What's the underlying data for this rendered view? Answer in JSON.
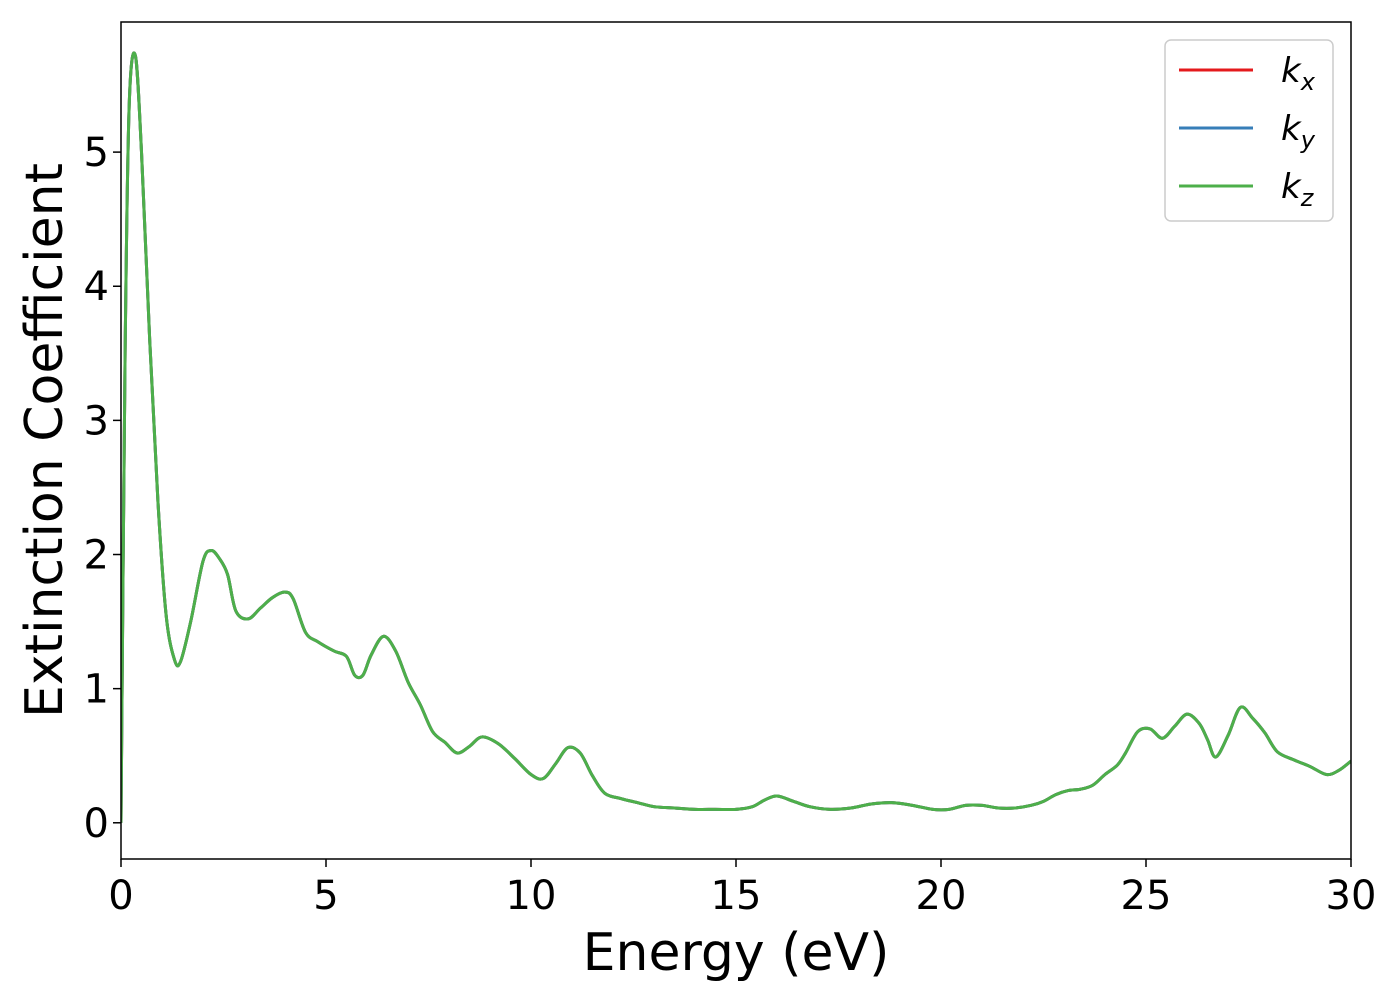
{
  "chart_data": {
    "type": "line",
    "title": "",
    "xlabel": "Energy (eV)",
    "ylabel": "Extinction Coefficient",
    "xlim": [
      0,
      30
    ],
    "ylim": [
      -0.27,
      5.97
    ],
    "xticks": [
      0,
      5,
      10,
      15,
      20,
      25,
      30
    ],
    "yticks": [
      0,
      1,
      2,
      3,
      4,
      5
    ],
    "grid": false,
    "legend_position": "top-right",
    "x": [
      0,
      0.1,
      0.2,
      0.35,
      0.5,
      0.7,
      0.9,
      1.1,
      1.3,
      1.45,
      1.7,
      2.0,
      2.2,
      2.4,
      2.6,
      2.8,
      3.1,
      3.4,
      3.7,
      4.0,
      4.2,
      4.5,
      4.8,
      5.2,
      5.5,
      5.7,
      5.9,
      6.1,
      6.4,
      6.7,
      7.0,
      7.3,
      7.6,
      7.9,
      8.2,
      8.5,
      8.8,
      9.2,
      9.6,
      10.0,
      10.3,
      10.6,
      10.9,
      11.2,
      11.5,
      11.8,
      12.2,
      12.6,
      13.0,
      13.5,
      14.0,
      14.5,
      15.0,
      15.4,
      15.7,
      16.0,
      16.4,
      16.8,
      17.3,
      17.8,
      18.3,
      18.8,
      19.3,
      19.8,
      20.2,
      20.6,
      21.0,
      21.4,
      21.8,
      22.2,
      22.5,
      22.8,
      23.1,
      23.4,
      23.7,
      24.0,
      24.3,
      24.5,
      24.8,
      25.1,
      25.4,
      25.7,
      26.0,
      26.3,
      26.5,
      26.7,
      27.0,
      27.3,
      27.6,
      27.9,
      28.2,
      28.6,
      29.0,
      29.4,
      29.7,
      30.0
    ],
    "series": [
      {
        "name": "k_x",
        "color": "#e41a1c",
        "values": [
          0.0,
          3.5,
          5.35,
          5.72,
          5.0,
          3.6,
          2.4,
          1.55,
          1.22,
          1.2,
          1.5,
          1.95,
          2.03,
          1.97,
          1.85,
          1.58,
          1.52,
          1.6,
          1.68,
          1.72,
          1.67,
          1.42,
          1.35,
          1.28,
          1.24,
          1.1,
          1.1,
          1.25,
          1.39,
          1.28,
          1.05,
          0.88,
          0.68,
          0.6,
          0.52,
          0.57,
          0.64,
          0.59,
          0.48,
          0.36,
          0.33,
          0.44,
          0.56,
          0.52,
          0.35,
          0.22,
          0.18,
          0.15,
          0.12,
          0.11,
          0.1,
          0.1,
          0.1,
          0.12,
          0.17,
          0.2,
          0.16,
          0.12,
          0.1,
          0.11,
          0.14,
          0.15,
          0.13,
          0.1,
          0.1,
          0.13,
          0.13,
          0.11,
          0.11,
          0.13,
          0.16,
          0.21,
          0.24,
          0.25,
          0.28,
          0.36,
          0.43,
          0.52,
          0.68,
          0.7,
          0.63,
          0.72,
          0.81,
          0.74,
          0.62,
          0.49,
          0.65,
          0.86,
          0.78,
          0.67,
          0.53,
          0.47,
          0.42,
          0.36,
          0.39,
          0.46
        ]
      },
      {
        "name": "k_y",
        "color": "#377eb8",
        "values": [
          0.0,
          3.5,
          5.35,
          5.72,
          5.0,
          3.6,
          2.4,
          1.55,
          1.22,
          1.2,
          1.5,
          1.95,
          2.03,
          1.97,
          1.85,
          1.58,
          1.52,
          1.6,
          1.68,
          1.72,
          1.67,
          1.42,
          1.35,
          1.28,
          1.24,
          1.1,
          1.1,
          1.25,
          1.39,
          1.28,
          1.05,
          0.88,
          0.68,
          0.6,
          0.52,
          0.57,
          0.64,
          0.59,
          0.48,
          0.36,
          0.33,
          0.44,
          0.56,
          0.52,
          0.35,
          0.22,
          0.18,
          0.15,
          0.12,
          0.11,
          0.1,
          0.1,
          0.1,
          0.12,
          0.17,
          0.2,
          0.16,
          0.12,
          0.1,
          0.11,
          0.14,
          0.15,
          0.13,
          0.1,
          0.1,
          0.13,
          0.13,
          0.11,
          0.11,
          0.13,
          0.16,
          0.21,
          0.24,
          0.25,
          0.28,
          0.36,
          0.43,
          0.52,
          0.68,
          0.7,
          0.63,
          0.72,
          0.81,
          0.74,
          0.62,
          0.49,
          0.65,
          0.86,
          0.78,
          0.67,
          0.53,
          0.47,
          0.42,
          0.36,
          0.39,
          0.46
        ]
      },
      {
        "name": "k_z",
        "color": "#4daf4a",
        "values": [
          0.0,
          3.5,
          5.35,
          5.72,
          5.0,
          3.6,
          2.4,
          1.55,
          1.22,
          1.2,
          1.5,
          1.95,
          2.03,
          1.97,
          1.85,
          1.58,
          1.52,
          1.6,
          1.68,
          1.72,
          1.67,
          1.42,
          1.35,
          1.28,
          1.24,
          1.1,
          1.1,
          1.25,
          1.39,
          1.28,
          1.05,
          0.88,
          0.68,
          0.6,
          0.52,
          0.57,
          0.64,
          0.59,
          0.48,
          0.36,
          0.33,
          0.44,
          0.56,
          0.52,
          0.35,
          0.22,
          0.18,
          0.15,
          0.12,
          0.11,
          0.1,
          0.1,
          0.1,
          0.12,
          0.17,
          0.2,
          0.16,
          0.12,
          0.1,
          0.11,
          0.14,
          0.15,
          0.13,
          0.1,
          0.1,
          0.13,
          0.13,
          0.11,
          0.11,
          0.13,
          0.16,
          0.21,
          0.24,
          0.25,
          0.28,
          0.36,
          0.43,
          0.52,
          0.68,
          0.7,
          0.63,
          0.72,
          0.81,
          0.74,
          0.62,
          0.49,
          0.65,
          0.86,
          0.78,
          0.67,
          0.53,
          0.47,
          0.42,
          0.36,
          0.39,
          0.46
        ]
      }
    ],
    "legend": [
      {
        "base": "k",
        "sub": "x",
        "color": "#e41a1c"
      },
      {
        "base": "k",
        "sub": "y",
        "color": "#377eb8"
      },
      {
        "base": "k",
        "sub": "z",
        "color": "#4daf4a"
      }
    ]
  }
}
